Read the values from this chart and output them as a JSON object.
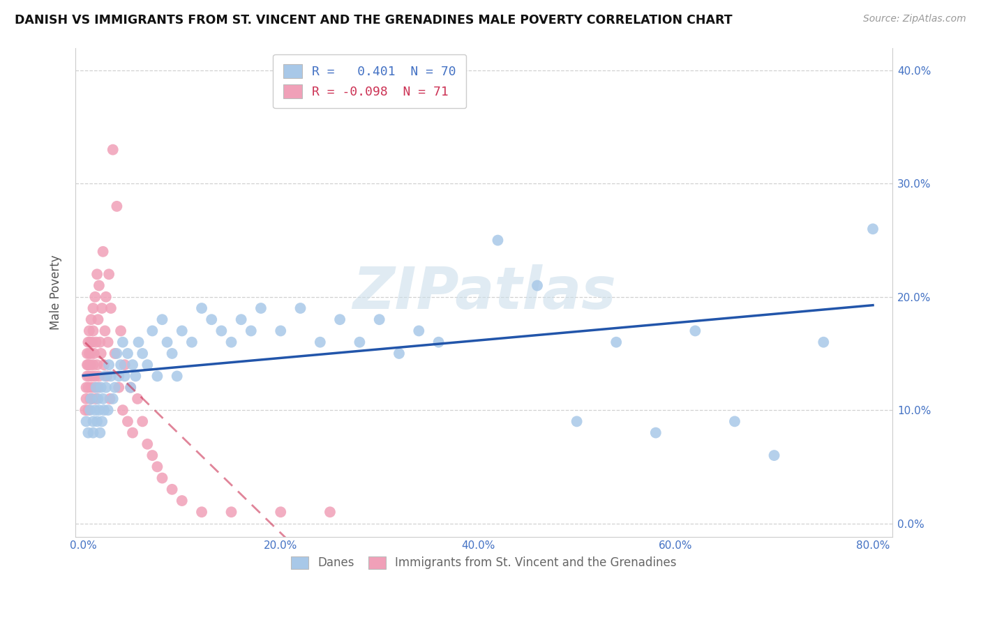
{
  "title": "DANISH VS IMMIGRANTS FROM ST. VINCENT AND THE GRENADINES MALE POVERTY CORRELATION CHART",
  "source": "Source: ZipAtlas.com",
  "ylabel": "Male Poverty",
  "xlim_min": -0.008,
  "xlim_max": 0.82,
  "ylim_min": -0.012,
  "ylim_max": 0.42,
  "xticks": [
    0.0,
    0.1,
    0.2,
    0.3,
    0.4,
    0.5,
    0.6,
    0.7,
    0.8
  ],
  "xticklabels": [
    "0.0%",
    "",
    "20.0%",
    "",
    "40.0%",
    "",
    "60.0%",
    "",
    "80.0%"
  ],
  "yticks_right": [
    0.0,
    0.1,
    0.2,
    0.3,
    0.4
  ],
  "yticklabels_right": [
    "0.0%",
    "10.0%",
    "20.0%",
    "30.0%",
    "40.0%"
  ],
  "blue_dot_color": "#a8c8e8",
  "pink_dot_color": "#f0a0b8",
  "blue_line_color": "#2255aa",
  "pink_line_color": "#cc3355",
  "grid_color": "#cccccc",
  "legend_R_blue": " 0.401",
  "legend_N_blue": "70",
  "legend_R_pink": "-0.098",
  "legend_N_pink": "71",
  "legend_label_blue": "Danes",
  "legend_label_pink": "Immigrants from St. Vincent and the Grenadines",
  "watermark": "ZIPatlas",
  "danes_x": [
    0.003,
    0.005,
    0.007,
    0.008,
    0.01,
    0.01,
    0.012,
    0.013,
    0.014,
    0.015,
    0.016,
    0.017,
    0.018,
    0.019,
    0.02,
    0.021,
    0.022,
    0.023,
    0.025,
    0.026,
    0.028,
    0.03,
    0.032,
    0.034,
    0.036,
    0.038,
    0.04,
    0.042,
    0.045,
    0.048,
    0.05,
    0.053,
    0.056,
    0.06,
    0.065,
    0.07,
    0.075,
    0.08,
    0.085,
    0.09,
    0.095,
    0.1,
    0.11,
    0.12,
    0.13,
    0.14,
    0.15,
    0.16,
    0.17,
    0.18,
    0.2,
    0.22,
    0.24,
    0.26,
    0.28,
    0.3,
    0.32,
    0.34,
    0.36,
    0.38,
    0.42,
    0.46,
    0.5,
    0.54,
    0.58,
    0.62,
    0.66,
    0.7,
    0.75,
    0.8
  ],
  "danes_y": [
    0.09,
    0.08,
    0.1,
    0.11,
    0.09,
    0.08,
    0.1,
    0.12,
    0.09,
    0.11,
    0.1,
    0.08,
    0.12,
    0.09,
    0.11,
    0.1,
    0.13,
    0.12,
    0.1,
    0.14,
    0.13,
    0.11,
    0.12,
    0.15,
    0.13,
    0.14,
    0.16,
    0.13,
    0.15,
    0.12,
    0.14,
    0.13,
    0.16,
    0.15,
    0.14,
    0.17,
    0.13,
    0.18,
    0.16,
    0.15,
    0.13,
    0.17,
    0.16,
    0.19,
    0.18,
    0.17,
    0.16,
    0.18,
    0.17,
    0.19,
    0.17,
    0.19,
    0.16,
    0.18,
    0.16,
    0.18,
    0.15,
    0.17,
    0.16,
    0.38,
    0.25,
    0.21,
    0.09,
    0.16,
    0.08,
    0.17,
    0.09,
    0.06,
    0.16,
    0.26
  ],
  "immigrants_x": [
    0.002,
    0.003,
    0.003,
    0.004,
    0.004,
    0.004,
    0.005,
    0.005,
    0.005,
    0.005,
    0.006,
    0.006,
    0.006,
    0.007,
    0.007,
    0.007,
    0.008,
    0.008,
    0.008,
    0.009,
    0.009,
    0.009,
    0.01,
    0.01,
    0.01,
    0.011,
    0.011,
    0.012,
    0.012,
    0.013,
    0.013,
    0.014,
    0.014,
    0.015,
    0.015,
    0.016,
    0.016,
    0.017,
    0.018,
    0.019,
    0.02,
    0.021,
    0.022,
    0.023,
    0.024,
    0.025,
    0.026,
    0.027,
    0.028,
    0.03,
    0.032,
    0.034,
    0.036,
    0.038,
    0.04,
    0.042,
    0.045,
    0.048,
    0.05,
    0.055,
    0.06,
    0.065,
    0.07,
    0.075,
    0.08,
    0.09,
    0.1,
    0.12,
    0.15,
    0.2,
    0.25
  ],
  "immigrants_y": [
    0.1,
    0.12,
    0.11,
    0.13,
    0.14,
    0.15,
    0.12,
    0.14,
    0.16,
    0.1,
    0.15,
    0.13,
    0.17,
    0.11,
    0.14,
    0.16,
    0.12,
    0.15,
    0.18,
    0.13,
    0.16,
    0.11,
    0.14,
    0.17,
    0.19,
    0.12,
    0.15,
    0.13,
    0.2,
    0.11,
    0.16,
    0.14,
    0.22,
    0.12,
    0.18,
    0.13,
    0.21,
    0.16,
    0.15,
    0.19,
    0.24,
    0.14,
    0.17,
    0.2,
    0.13,
    0.16,
    0.22,
    0.11,
    0.19,
    0.33,
    0.15,
    0.28,
    0.12,
    0.17,
    0.1,
    0.14,
    0.09,
    0.12,
    0.08,
    0.11,
    0.09,
    0.07,
    0.06,
    0.05,
    0.04,
    0.03,
    0.02,
    0.01,
    0.01,
    0.01,
    0.01
  ]
}
